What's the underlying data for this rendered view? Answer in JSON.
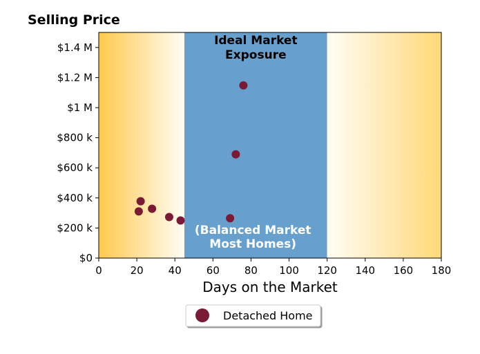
{
  "chart_data": {
    "type": "scatter",
    "title": "Selling Price",
    "xlabel": "Days on the Market",
    "ylabel": "",
    "xlim": [
      0,
      180
    ],
    "ylim": [
      0,
      1500000
    ],
    "x_ticks": [
      0,
      20,
      40,
      60,
      80,
      100,
      120,
      140,
      160,
      180
    ],
    "x_tick_labels": [
      "0",
      "20",
      "40",
      "60",
      "80",
      "100",
      "120",
      "140",
      "160",
      "180"
    ],
    "y_ticks": [
      0,
      200000,
      400000,
      600000,
      800000,
      1000000,
      1200000,
      1400000
    ],
    "y_tick_labels": [
      "$0",
      "$200 k",
      "$400 k",
      "$600 k",
      "$800 k",
      "$1 M",
      "$1.2 M",
      "$1.4 M"
    ],
    "grid": false,
    "legend_position": "bottom-center",
    "regions": [
      {
        "from": 0,
        "to": 45,
        "label_lines": [],
        "fill": "gradient",
        "colors": [
          "#ffc94d",
          "#fffdf5"
        ]
      },
      {
        "from": 45,
        "to": 120,
        "label_top_lines": [
          "Ideal Market",
          "Exposure"
        ],
        "label_bottom_lines": [
          "(Balanced Market",
          "Most Homes)"
        ],
        "color": "#68a0cd"
      },
      {
        "from": 120,
        "to": 180,
        "label_lines": [],
        "fill": "gradient",
        "colors": [
          "#fffdf5",
          "#ffd877"
        ]
      }
    ],
    "series": [
      {
        "name": "Detached Home",
        "color": "#7a1a34",
        "points": [
          {
            "x": 21,
            "y": 310000
          },
          {
            "x": 22,
            "y": 378000
          },
          {
            "x": 28,
            "y": 328000
          },
          {
            "x": 37,
            "y": 273000
          },
          {
            "x": 43,
            "y": 250000
          },
          {
            "x": 69,
            "y": 265000
          },
          {
            "x": 72,
            "y": 690000
          },
          {
            "x": 76,
            "y": 1148000
          }
        ]
      }
    ]
  }
}
